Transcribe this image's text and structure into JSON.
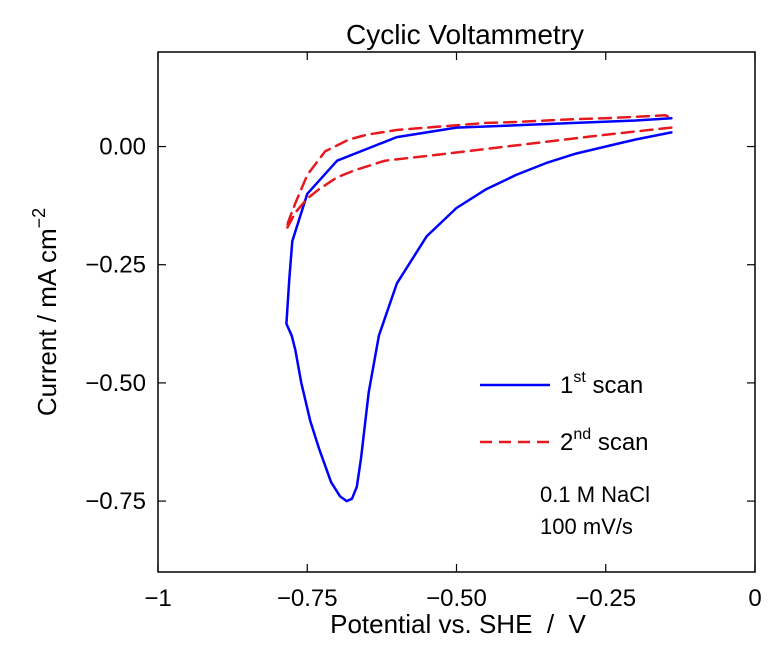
{
  "chart_data": {
    "type": "line",
    "title": "Cyclic Voltammetry",
    "xlabel": "Potential vs. SHE  /  V",
    "ylabel": {
      "main": "Current / mA cm",
      "sup": "−2"
    },
    "xlim": [
      -1,
      0
    ],
    "ylim": [
      -0.9,
      0.2
    ],
    "xticks": [
      -1,
      -0.75,
      -0.5,
      -0.25,
      0
    ],
    "xtick_labels": [
      "−1",
      "−0.75",
      "−0.50",
      "−0.25",
      "0"
    ],
    "yticks": [
      0.0,
      -0.25,
      -0.5,
      -0.75
    ],
    "ytick_labels": [
      "0.00",
      "−0.25",
      "−0.50",
      "−0.75"
    ],
    "grid": false,
    "legend": "lower-right",
    "series": [
      {
        "name": "1st scan",
        "legend_base": "1",
        "legend_sup": "st",
        "legend_tail": " scan",
        "color": "#0000ff",
        "style": "solid",
        "x": [
          -0.14,
          -0.2,
          -0.3,
          -0.4,
          -0.5,
          -0.6,
          -0.7,
          -0.75,
          -0.775,
          -0.78,
          -0.785,
          -0.776,
          -0.77,
          -0.76,
          -0.745,
          -0.73,
          -0.71,
          -0.695,
          -0.684,
          -0.675,
          -0.667,
          -0.66,
          -0.647,
          -0.63,
          -0.6,
          -0.55,
          -0.5,
          -0.45,
          -0.4,
          -0.35,
          -0.3,
          -0.25,
          -0.2,
          -0.14
        ],
        "y": [
          0.06,
          0.055,
          0.05,
          0.045,
          0.04,
          0.02,
          -0.03,
          -0.1,
          -0.2,
          -0.28,
          -0.375,
          -0.4,
          -0.43,
          -0.5,
          -0.58,
          -0.64,
          -0.71,
          -0.74,
          -0.75,
          -0.745,
          -0.72,
          -0.66,
          -0.52,
          -0.4,
          -0.29,
          -0.19,
          -0.13,
          -0.09,
          -0.06,
          -0.035,
          -0.015,
          0.0,
          0.015,
          0.03
        ]
      },
      {
        "name": "2nd scan",
        "legend_base": "2",
        "legend_sup": "nd",
        "legend_tail": " scan",
        "color": "#e8191e",
        "style": "dashed",
        "x": [
          -0.14,
          -0.25,
          -0.35,
          -0.45,
          -0.55,
          -0.62,
          -0.67,
          -0.7,
          -0.73,
          -0.75,
          -0.77,
          -0.785,
          -0.782,
          -0.77,
          -0.75,
          -0.72,
          -0.68,
          -0.65,
          -0.6,
          -0.55,
          -0.5,
          -0.45,
          -0.4,
          -0.35,
          -0.3,
          -0.25,
          -0.2,
          -0.15,
          -0.14
        ],
        "y": [
          0.04,
          0.025,
          0.01,
          -0.005,
          -0.02,
          -0.03,
          -0.05,
          -0.065,
          -0.09,
          -0.11,
          -0.14,
          -0.175,
          -0.16,
          -0.12,
          -0.06,
          -0.01,
          0.015,
          0.025,
          0.035,
          0.04,
          0.045,
          0.05,
          0.052,
          0.055,
          0.058,
          0.06,
          0.063,
          0.066,
          0.06
        ]
      }
    ],
    "annotations": [
      "0.1 M NaCl",
      "100 mV/s"
    ]
  }
}
